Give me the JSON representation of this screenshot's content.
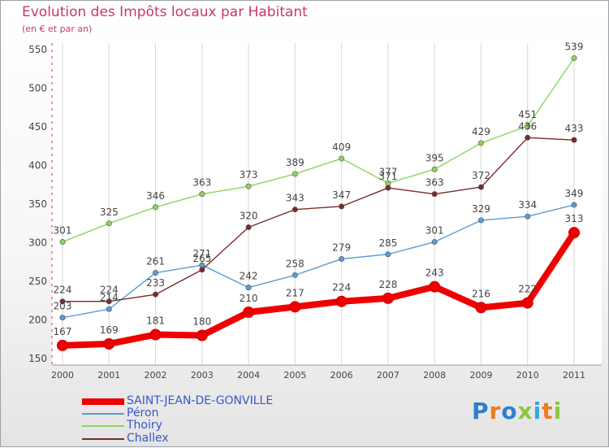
{
  "chart_data": {
    "type": "line",
    "title": "Evolution des Impôts locaux par Habitant",
    "subtitle": "(en € et par an)",
    "xlabel": "",
    "ylabel": "",
    "x": [
      "2000",
      "2001",
      "2002",
      "2003",
      "2004",
      "2005",
      "2006",
      "2007",
      "2008",
      "2009",
      "2010",
      "2011"
    ],
    "ylim": [
      150,
      550
    ],
    "yticks": [
      150,
      200,
      250,
      300,
      350,
      400,
      450,
      500,
      550
    ],
    "grid": "vertical",
    "legend_position": "bottom-left",
    "series": [
      {
        "name": "SAINT-JEAN-DE-GONVILLE",
        "color": "#ee0000",
        "values": [
          167,
          169,
          181,
          180,
          210,
          217,
          224,
          228,
          243,
          216,
          222,
          313
        ]
      },
      {
        "name": "Péron",
        "color": "#5b9bd5",
        "values": [
          203,
          214,
          261,
          271,
          242,
          258,
          279,
          285,
          301,
          329,
          334,
          349
        ]
      },
      {
        "name": "Thoiry",
        "color": "#8dd35f",
        "values": [
          301,
          325,
          346,
          363,
          373,
          389,
          409,
          377,
          395,
          429,
          451,
          539
        ]
      },
      {
        "name": "Challex",
        "color": "#7a2a2a",
        "values": [
          224,
          224,
          233,
          265,
          320,
          343,
          347,
          371,
          363,
          372,
          436,
          433
        ]
      }
    ]
  },
  "logo_text": "Proxiti"
}
